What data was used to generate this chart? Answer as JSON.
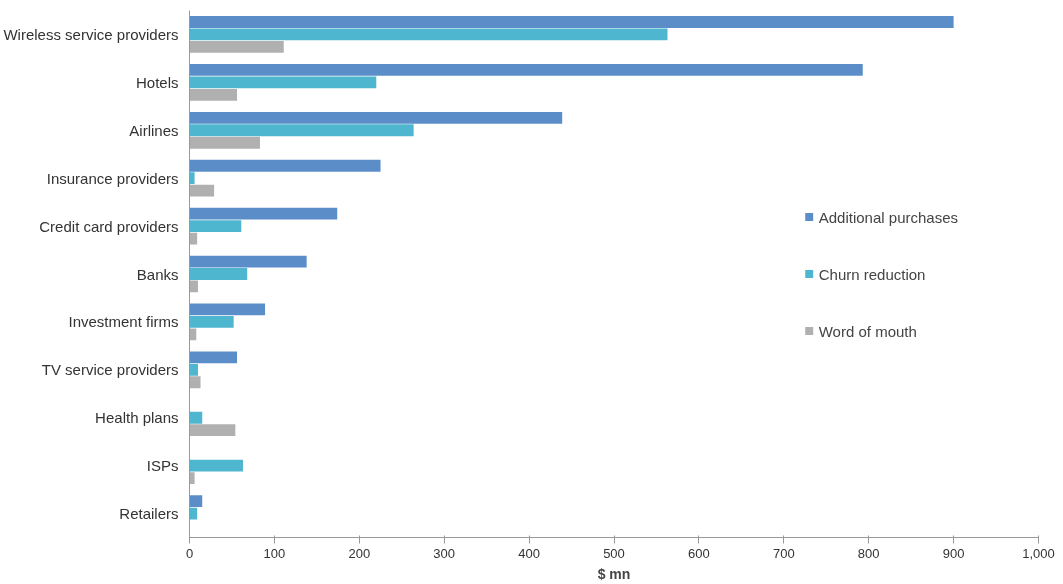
{
  "chart_data": {
    "type": "bar",
    "orientation": "horizontal",
    "xlabel": "$ mn",
    "categories": [
      "Wireless service providers",
      "Hotels",
      "Airlines",
      "Insurance providers",
      "Credit card providers",
      "Banks",
      "Investment firms",
      "TV service providers",
      "Health plans",
      "ISPs",
      "Retailers"
    ],
    "series": [
      {
        "name": "Additional purchases",
        "color": "#5b8ec8",
        "values": [
          900,
          793,
          439,
          225,
          174,
          138,
          89,
          56,
          null,
          null,
          15
        ]
      },
      {
        "name": "Churn reduction",
        "color": "#4fb6cf",
        "values": [
          563,
          220,
          264,
          6,
          61,
          68,
          52,
          10,
          15,
          63,
          9
        ]
      },
      {
        "name": "Word of mouth",
        "color": "#b0b0b0",
        "values": [
          111,
          56,
          83,
          29,
          9,
          10,
          8,
          13,
          54,
          6,
          null
        ]
      }
    ],
    "xlim": [
      0,
      1000
    ],
    "xticks": [
      0,
      100,
      200,
      300,
      400,
      500,
      600,
      700,
      800,
      900,
      {
        "value": 1000,
        "label": "1,000"
      }
    ],
    "grid": false,
    "legend": "right"
  }
}
